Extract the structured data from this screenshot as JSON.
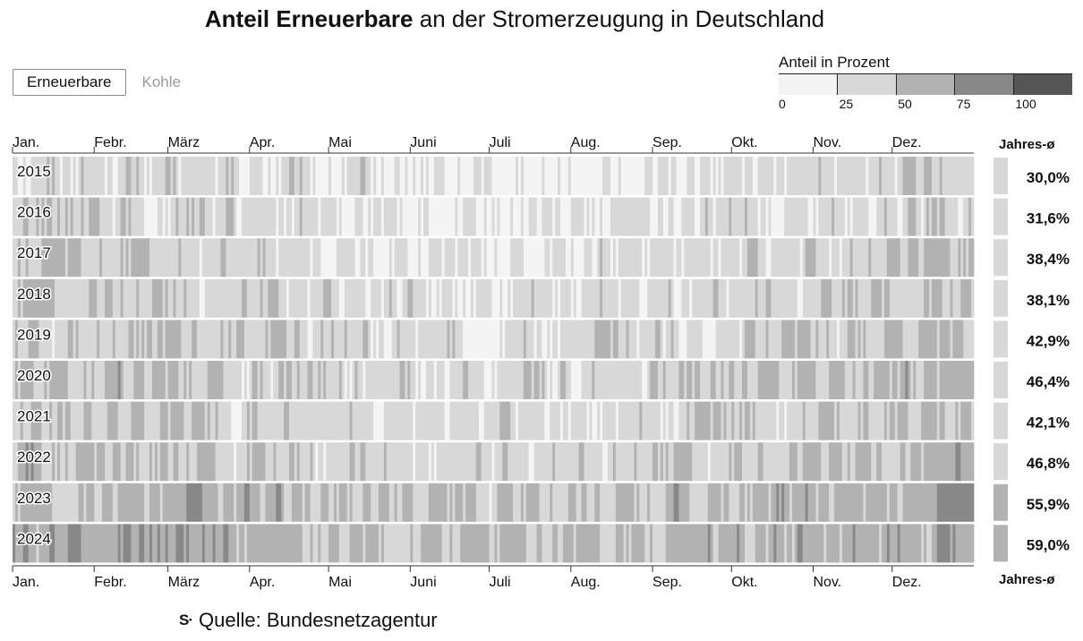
{
  "title": {
    "bold": "Anteil Erneuerbare",
    "rest": " an der Stromerzeugung in Deutschland"
  },
  "tabs": [
    {
      "label": "Erneuerbare",
      "active": true
    },
    {
      "label": "Kohle",
      "active": false
    }
  ],
  "legend": {
    "title": "Anteil in Prozent",
    "bins": [
      {
        "from": 0,
        "to": 25,
        "color": "#f4f4f4"
      },
      {
        "from": 25,
        "to": 50,
        "color": "#d8d8d8"
      },
      {
        "from": 50,
        "to": 75,
        "color": "#b2b2b2"
      },
      {
        "from": 75,
        "to": 100,
        "color": "#888888"
      },
      {
        "from": 100,
        "to": 100,
        "color": "#555555"
      }
    ],
    "ticks": [
      "0",
      "25",
      "50",
      "75",
      "100"
    ]
  },
  "avg_header": "Jahres-ø",
  "avg_footer": "Jahres-ø",
  "source": {
    "logo": "S·",
    "text": "Quelle: Bundesnetzagentur"
  },
  "chart_data": {
    "type": "heatmap",
    "x_axis": "day of year (daily values)",
    "month_labels": [
      "Jan.",
      "Febr.",
      "März",
      "Apr.",
      "Mai",
      "Juni",
      "Juli",
      "Aug.",
      "Sep.",
      "Okt.",
      "Nov.",
      "Dez."
    ],
    "value_range": [
      0,
      100
    ],
    "years": [
      {
        "year": "2015",
        "annual_avg": "30,0%",
        "annual_avg_value": 30.0
      },
      {
        "year": "2016",
        "annual_avg": "31,6%",
        "annual_avg_value": 31.6
      },
      {
        "year": "2017",
        "annual_avg": "38,4%",
        "annual_avg_value": 38.4
      },
      {
        "year": "2018",
        "annual_avg": "38,1%",
        "annual_avg_value": 38.1
      },
      {
        "year": "2019",
        "annual_avg": "42,9%",
        "annual_avg_value": 42.9
      },
      {
        "year": "2020",
        "annual_avg": "46,4%",
        "annual_avg_value": 46.4
      },
      {
        "year": "2021",
        "annual_avg": "42,1%",
        "annual_avg_value": 42.1
      },
      {
        "year": "2022",
        "annual_avg": "46,8%",
        "annual_avg_value": 46.8
      },
      {
        "year": "2023",
        "annual_avg": "55,9%",
        "annual_avg_value": 55.9
      },
      {
        "year": "2024",
        "annual_avg": "59,0%",
        "annual_avg_value": 59.0
      }
    ]
  }
}
